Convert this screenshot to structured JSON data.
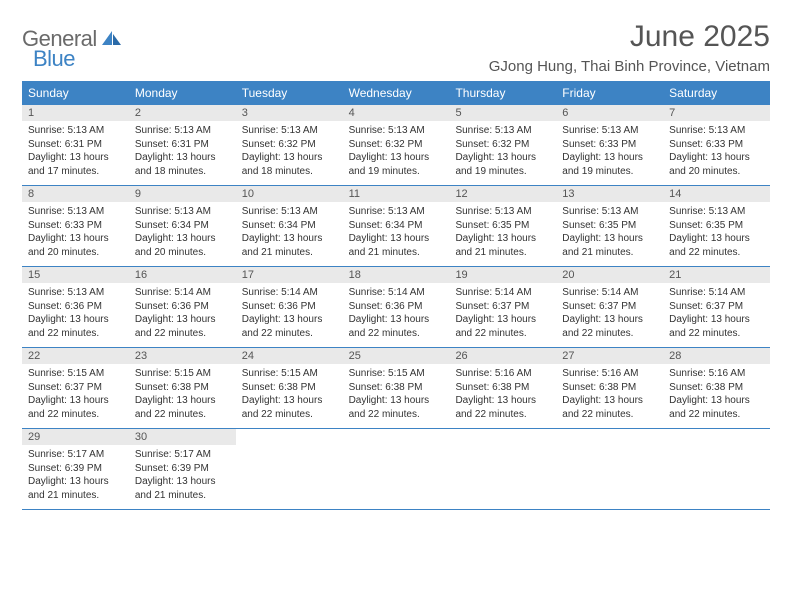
{
  "colors": {
    "header_bg": "#3d83c4",
    "header_text": "#ffffff",
    "day_num_bg": "#e9e9e9",
    "week_divider": "#3d83c4",
    "title_color": "#555555",
    "body_text": "#333333",
    "logo_gray": "#6a6a6a",
    "logo_blue": "#3d83c4",
    "page_bg": "#ffffff"
  },
  "logo": {
    "part1": "General",
    "part2": "Blue"
  },
  "title": "June 2025",
  "location": "GJong Hung, Thai Binh Province, Vietnam",
  "day_names": [
    "Sunday",
    "Monday",
    "Tuesday",
    "Wednesday",
    "Thursday",
    "Friday",
    "Saturday"
  ],
  "weeks": [
    [
      {
        "n": "1",
        "sr": "Sunrise: 5:13 AM",
        "ss": "Sunset: 6:31 PM",
        "d1": "Daylight: 13 hours",
        "d2": "and 17 minutes."
      },
      {
        "n": "2",
        "sr": "Sunrise: 5:13 AM",
        "ss": "Sunset: 6:31 PM",
        "d1": "Daylight: 13 hours",
        "d2": "and 18 minutes."
      },
      {
        "n": "3",
        "sr": "Sunrise: 5:13 AM",
        "ss": "Sunset: 6:32 PM",
        "d1": "Daylight: 13 hours",
        "d2": "and 18 minutes."
      },
      {
        "n": "4",
        "sr": "Sunrise: 5:13 AM",
        "ss": "Sunset: 6:32 PM",
        "d1": "Daylight: 13 hours",
        "d2": "and 19 minutes."
      },
      {
        "n": "5",
        "sr": "Sunrise: 5:13 AM",
        "ss": "Sunset: 6:32 PM",
        "d1": "Daylight: 13 hours",
        "d2": "and 19 minutes."
      },
      {
        "n": "6",
        "sr": "Sunrise: 5:13 AM",
        "ss": "Sunset: 6:33 PM",
        "d1": "Daylight: 13 hours",
        "d2": "and 19 minutes."
      },
      {
        "n": "7",
        "sr": "Sunrise: 5:13 AM",
        "ss": "Sunset: 6:33 PM",
        "d1": "Daylight: 13 hours",
        "d2": "and 20 minutes."
      }
    ],
    [
      {
        "n": "8",
        "sr": "Sunrise: 5:13 AM",
        "ss": "Sunset: 6:33 PM",
        "d1": "Daylight: 13 hours",
        "d2": "and 20 minutes."
      },
      {
        "n": "9",
        "sr": "Sunrise: 5:13 AM",
        "ss": "Sunset: 6:34 PM",
        "d1": "Daylight: 13 hours",
        "d2": "and 20 minutes."
      },
      {
        "n": "10",
        "sr": "Sunrise: 5:13 AM",
        "ss": "Sunset: 6:34 PM",
        "d1": "Daylight: 13 hours",
        "d2": "and 21 minutes."
      },
      {
        "n": "11",
        "sr": "Sunrise: 5:13 AM",
        "ss": "Sunset: 6:34 PM",
        "d1": "Daylight: 13 hours",
        "d2": "and 21 minutes."
      },
      {
        "n": "12",
        "sr": "Sunrise: 5:13 AM",
        "ss": "Sunset: 6:35 PM",
        "d1": "Daylight: 13 hours",
        "d2": "and 21 minutes."
      },
      {
        "n": "13",
        "sr": "Sunrise: 5:13 AM",
        "ss": "Sunset: 6:35 PM",
        "d1": "Daylight: 13 hours",
        "d2": "and 21 minutes."
      },
      {
        "n": "14",
        "sr": "Sunrise: 5:13 AM",
        "ss": "Sunset: 6:35 PM",
        "d1": "Daylight: 13 hours",
        "d2": "and 22 minutes."
      }
    ],
    [
      {
        "n": "15",
        "sr": "Sunrise: 5:13 AM",
        "ss": "Sunset: 6:36 PM",
        "d1": "Daylight: 13 hours",
        "d2": "and 22 minutes."
      },
      {
        "n": "16",
        "sr": "Sunrise: 5:14 AM",
        "ss": "Sunset: 6:36 PM",
        "d1": "Daylight: 13 hours",
        "d2": "and 22 minutes."
      },
      {
        "n": "17",
        "sr": "Sunrise: 5:14 AM",
        "ss": "Sunset: 6:36 PM",
        "d1": "Daylight: 13 hours",
        "d2": "and 22 minutes."
      },
      {
        "n": "18",
        "sr": "Sunrise: 5:14 AM",
        "ss": "Sunset: 6:36 PM",
        "d1": "Daylight: 13 hours",
        "d2": "and 22 minutes."
      },
      {
        "n": "19",
        "sr": "Sunrise: 5:14 AM",
        "ss": "Sunset: 6:37 PM",
        "d1": "Daylight: 13 hours",
        "d2": "and 22 minutes."
      },
      {
        "n": "20",
        "sr": "Sunrise: 5:14 AM",
        "ss": "Sunset: 6:37 PM",
        "d1": "Daylight: 13 hours",
        "d2": "and 22 minutes."
      },
      {
        "n": "21",
        "sr": "Sunrise: 5:14 AM",
        "ss": "Sunset: 6:37 PM",
        "d1": "Daylight: 13 hours",
        "d2": "and 22 minutes."
      }
    ],
    [
      {
        "n": "22",
        "sr": "Sunrise: 5:15 AM",
        "ss": "Sunset: 6:37 PM",
        "d1": "Daylight: 13 hours",
        "d2": "and 22 minutes."
      },
      {
        "n": "23",
        "sr": "Sunrise: 5:15 AM",
        "ss": "Sunset: 6:38 PM",
        "d1": "Daylight: 13 hours",
        "d2": "and 22 minutes."
      },
      {
        "n": "24",
        "sr": "Sunrise: 5:15 AM",
        "ss": "Sunset: 6:38 PM",
        "d1": "Daylight: 13 hours",
        "d2": "and 22 minutes."
      },
      {
        "n": "25",
        "sr": "Sunrise: 5:15 AM",
        "ss": "Sunset: 6:38 PM",
        "d1": "Daylight: 13 hours",
        "d2": "and 22 minutes."
      },
      {
        "n": "26",
        "sr": "Sunrise: 5:16 AM",
        "ss": "Sunset: 6:38 PM",
        "d1": "Daylight: 13 hours",
        "d2": "and 22 minutes."
      },
      {
        "n": "27",
        "sr": "Sunrise: 5:16 AM",
        "ss": "Sunset: 6:38 PM",
        "d1": "Daylight: 13 hours",
        "d2": "and 22 minutes."
      },
      {
        "n": "28",
        "sr": "Sunrise: 5:16 AM",
        "ss": "Sunset: 6:38 PM",
        "d1": "Daylight: 13 hours",
        "d2": "and 22 minutes."
      }
    ],
    [
      {
        "n": "29",
        "sr": "Sunrise: 5:17 AM",
        "ss": "Sunset: 6:39 PM",
        "d1": "Daylight: 13 hours",
        "d2": "and 21 minutes."
      },
      {
        "n": "30",
        "sr": "Sunrise: 5:17 AM",
        "ss": "Sunset: 6:39 PM",
        "d1": "Daylight: 13 hours",
        "d2": "and 21 minutes."
      },
      null,
      null,
      null,
      null,
      null
    ]
  ]
}
